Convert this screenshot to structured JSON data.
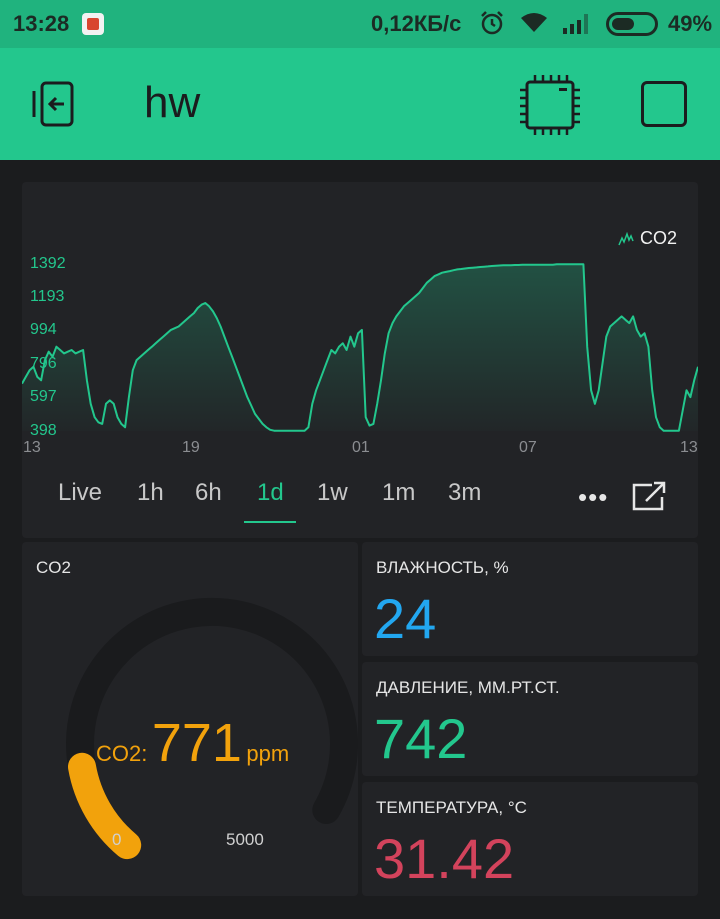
{
  "statusbar": {
    "time": "13:28",
    "speed": "0,12КБ/с",
    "battery": "49%"
  },
  "appbar": {
    "title": "hw"
  },
  "chart": {
    "legend": "CO2",
    "y_labels": [
      "1392",
      "1193",
      "994",
      "796",
      "597",
      "398"
    ],
    "x_labels": [
      "13",
      "19",
      "01",
      "07",
      "13"
    ],
    "line_color": "#23c78d"
  },
  "chart_data": {
    "type": "line",
    "series": [
      {
        "name": "CO2",
        "values": [
          680,
          720,
          760,
          780,
          720,
          700,
          820,
          870,
          840,
          900,
          880,
          860,
          870,
          880,
          860,
          870,
          880,
          700,
          560,
          480,
          450,
          440,
          560,
          580,
          560,
          480,
          440,
          420,
          600,
          760,
          820,
          840,
          860,
          880,
          900,
          920,
          940,
          960,
          980,
          1000,
          1010,
          1020,
          1040,
          1060,
          1080,
          1100,
          1130,
          1150,
          1160,
          1140,
          1110,
          1070,
          1020,
          960,
          900,
          840,
          780,
          720,
          660,
          600,
          550,
          500,
          470,
          440,
          420,
          405,
          400,
          400,
          400,
          400,
          400,
          400,
          400,
          400,
          400,
          420,
          560,
          640,
          700,
          760,
          820,
          880,
          860,
          900,
          920,
          880,
          960,
          900,
          980,
          1000,
          480,
          430,
          440,
          560,
          700,
          860,
          980,
          1040,
          1080,
          1110,
          1140,
          1160,
          1180,
          1200,
          1220,
          1250,
          1280,
          1300,
          1320,
          1330,
          1340,
          1345,
          1350,
          1355,
          1360,
          1362,
          1365,
          1368,
          1370,
          1372,
          1374,
          1376,
          1378,
          1380,
          1382,
          1383,
          1384,
          1385,
          1385,
          1386,
          1386,
          1387,
          1387,
          1387,
          1388,
          1388,
          1388,
          1388,
          1388,
          1388,
          1390,
          1390,
          1390,
          1390,
          1390,
          1390,
          1390,
          1390,
          900,
          640,
          560,
          640,
          800,
          960,
          1020,
          1040,
          1060,
          1080,
          1060,
          1040,
          1080,
          1000,
          960,
          980,
          900,
          640,
          480,
          420,
          400,
          400,
          400,
          400,
          400,
          520,
          640,
          600,
          700,
          780
        ]
      }
    ],
    "x_ticks": [
      "13",
      "19",
      "01",
      "07",
      "13"
    ],
    "y_ticks": [
      398,
      597,
      796,
      994,
      1193,
      1392
    ],
    "ylim": [
      398,
      1392
    ],
    "grid": false,
    "legend": "top-right"
  },
  "ranges": {
    "items": [
      "Live",
      "1h",
      "6h",
      "1d",
      "1w",
      "1m",
      "3m"
    ],
    "active": "1d",
    "more": "•••"
  },
  "gauge": {
    "label": "CO2",
    "prefix": "CO2:",
    "value": "771",
    "unit": "ppm",
    "min": "0",
    "max": "5000",
    "fraction": 0.154,
    "color": "#f2a20c"
  },
  "humidity": {
    "label": "ВЛАЖНОСТЬ, %",
    "value": "24",
    "color": "#22a7f0"
  },
  "pressure": {
    "label": "ДАВЛЕНИЕ, ММ.РТ.СТ.",
    "value": "742",
    "color": "#23c78d"
  },
  "temperature": {
    "label": "ТЕМПЕРАТУРА, °C",
    "value": "31.42",
    "color": "#d3435c"
  }
}
